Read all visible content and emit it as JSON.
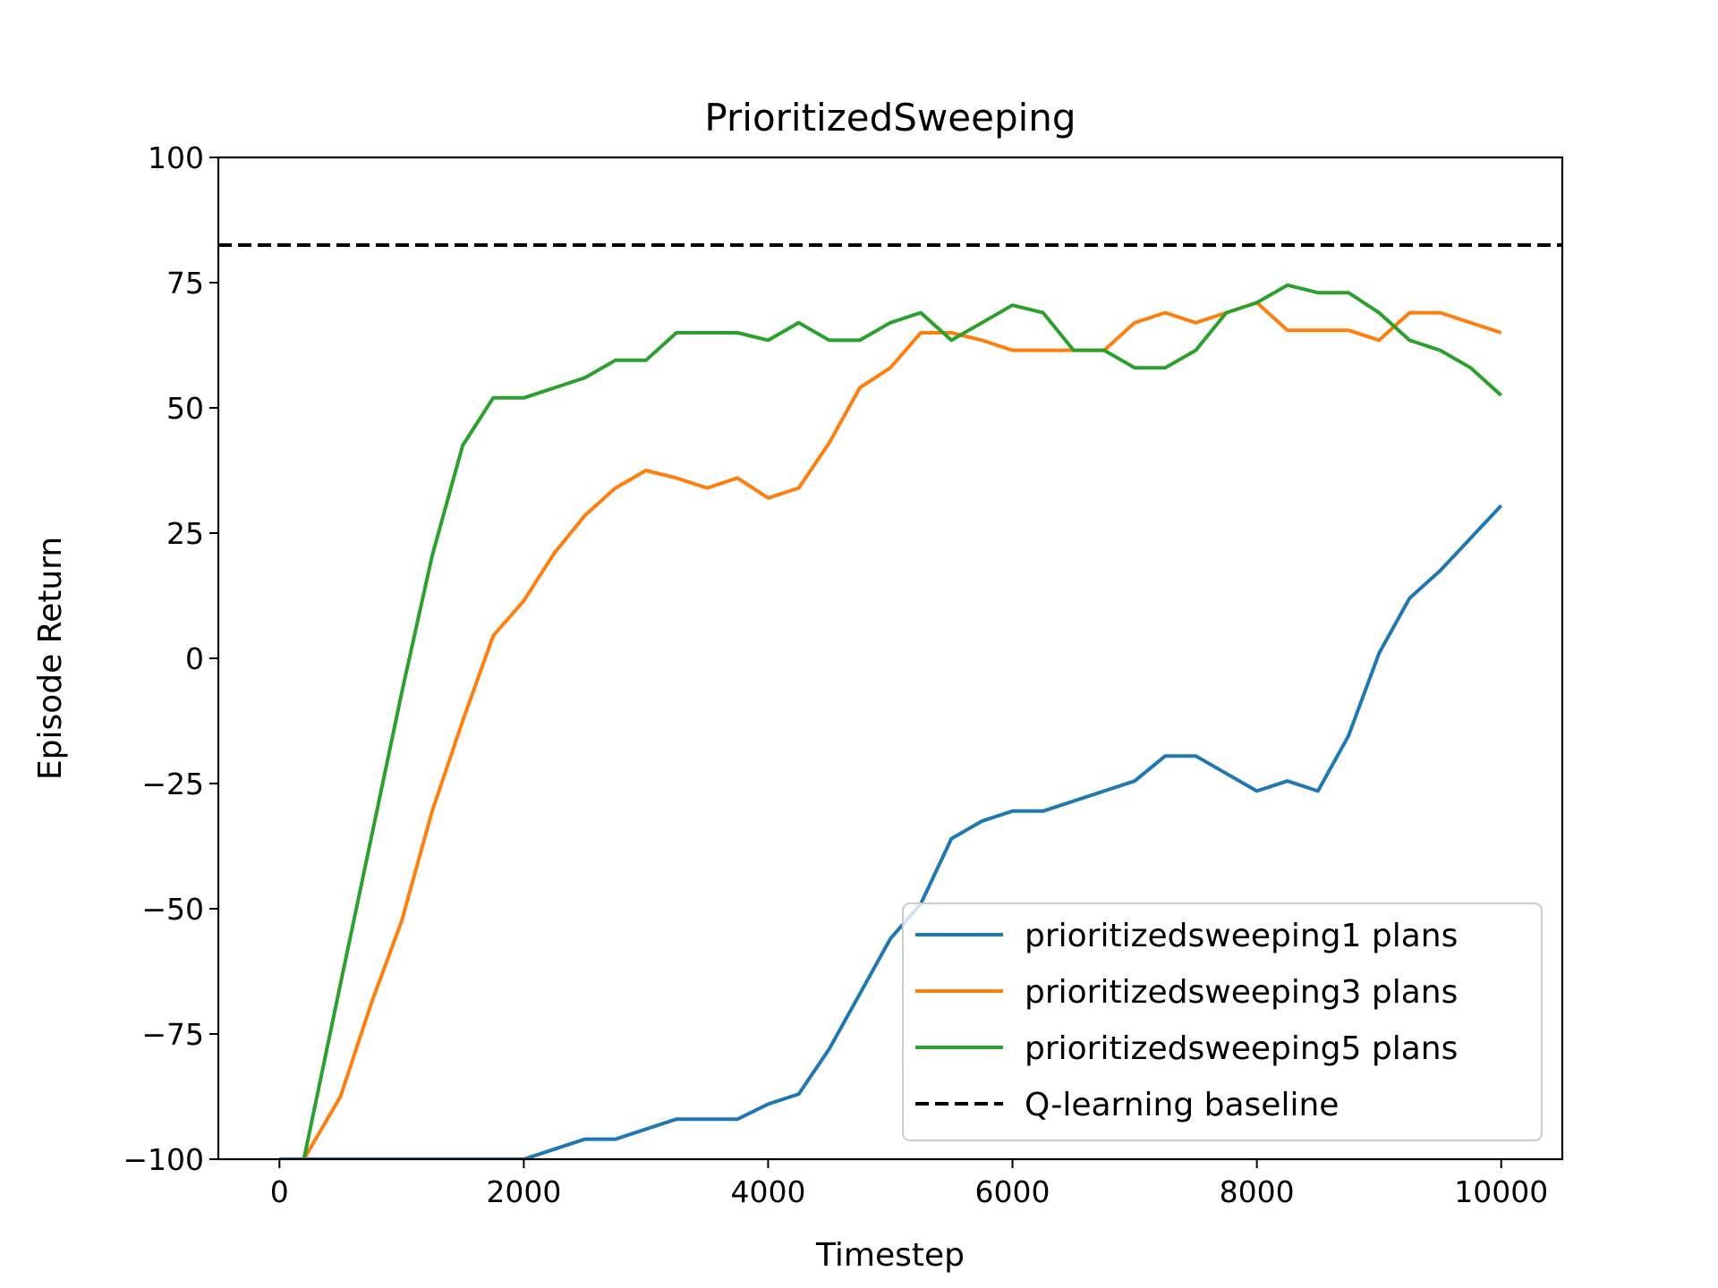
{
  "chart_data": {
    "type": "line",
    "title": "PrioritizedSweeping",
    "xlabel": "Timestep",
    "ylabel": "Episode Return",
    "xlim": [
      -500,
      10500
    ],
    "ylim": [
      -100,
      100
    ],
    "xticks": [
      0,
      2000,
      4000,
      6000,
      8000,
      10000
    ],
    "xtick_labels": [
      "0",
      "2000",
      "4000",
      "6000",
      "8000",
      "10000"
    ],
    "yticks": [
      -100,
      -75,
      -50,
      -25,
      0,
      25,
      50,
      75,
      100
    ],
    "ytick_labels": [
      "−100",
      "−75",
      "−50",
      "−25",
      "0",
      "25",
      "50",
      "75",
      "100"
    ],
    "grid": false,
    "legend_position": "lower-right",
    "x": [
      0,
      200,
      500,
      750,
      1000,
      1250,
      1500,
      1750,
      2000,
      2250,
      2500,
      2750,
      3000,
      3250,
      3500,
      3750,
      4000,
      4250,
      4500,
      4750,
      5000,
      5250,
      5500,
      5750,
      6000,
      6250,
      6500,
      6750,
      7000,
      7250,
      7500,
      7750,
      8000,
      8250,
      8500,
      8750,
      9000,
      9250,
      9500,
      9750,
      10000
    ],
    "series": [
      {
        "name": "prioritizedsweeping1 plans",
        "color": "#1f77b4",
        "style": "solid",
        "x": [
          0,
          250,
          500,
          750,
          1000,
          1250,
          1500,
          1750,
          2000,
          2250,
          2500,
          2750,
          3000,
          3250,
          3500,
          3750,
          4000,
          4250,
          4500,
          4750,
          5000,
          5250,
          5500,
          5750,
          6000,
          6250,
          6500,
          6750,
          7000,
          7250,
          7500,
          7750,
          8000,
          8250,
          8500,
          8750,
          9000,
          9250,
          9500,
          9750,
          10000
        ],
        "values": [
          -100,
          -100,
          -100,
          -100,
          -100,
          -100,
          -100,
          -100,
          -100,
          -98,
          -96,
          -96,
          -94,
          -92,
          -92,
          -92,
          -89,
          -87,
          -78,
          -67,
          -56,
          -49,
          -36,
          -32.5,
          -30.5,
          -30.5,
          -28.5,
          -26.5,
          -24.5,
          -19.5,
          -19.5,
          -23,
          -26.5,
          -24.5,
          -26.5,
          -15.5,
          1,
          12,
          17.5,
          24,
          30.5
        ]
      },
      {
        "name": "prioritizedsweeping3 plans",
        "color": "#ff7f0e",
        "style": "solid",
        "x": [
          200,
          500,
          750,
          1000,
          1250,
          1500,
          1750,
          2000,
          2250,
          2500,
          2750,
          3000,
          3250,
          3500,
          3750,
          4000,
          4250,
          4500,
          4750,
          5000,
          5250,
          5500,
          5750,
          6000,
          6250,
          6500,
          6750,
          7000,
          7250,
          7500,
          7750,
          8000,
          8250,
          8500,
          8750,
          9000,
          9250,
          9500,
          9750,
          10000
        ],
        "values": [
          -100,
          -87.5,
          -69,
          -52.5,
          -30.5,
          -12.5,
          4.5,
          11.5,
          21,
          28.5,
          34,
          37.5,
          36,
          34,
          36,
          32,
          34,
          43,
          54,
          58,
          65,
          65,
          63.5,
          61.5,
          61.5,
          61.5,
          61.5,
          67,
          69,
          67,
          69,
          71,
          65.5,
          65.5,
          65.5,
          63.5,
          69,
          69,
          67,
          65
        ]
      },
      {
        "name": "prioritizedsweeping5 plans",
        "color": "#2ca02c",
        "style": "solid",
        "x": [
          200,
          500,
          750,
          1000,
          1250,
          1500,
          1750,
          2000,
          2250,
          2500,
          2750,
          3000,
          3250,
          3500,
          3750,
          4000,
          4250,
          4500,
          4750,
          5000,
          5250,
          5500,
          5750,
          6000,
          6250,
          6500,
          6750,
          7000,
          7250,
          7500,
          7750,
          8000,
          8250,
          8500,
          8750,
          9000,
          9250,
          9500,
          9750,
          10000
        ],
        "values": [
          -100,
          -65,
          -36,
          -7,
          20.5,
          42.5,
          52,
          52,
          54,
          56,
          59.5,
          59.5,
          65,
          65,
          65,
          63.5,
          67,
          63.5,
          63.5,
          67,
          69,
          63.5,
          67,
          70.5,
          69,
          61.5,
          61.5,
          58,
          58,
          61.5,
          69,
          71,
          74.5,
          73,
          73,
          69,
          63.5,
          61.5,
          58,
          52.5
        ]
      },
      {
        "name": "Q-learning baseline",
        "color": "#000000",
        "style": "dashed",
        "x": [
          -500,
          10500
        ],
        "values": [
          82.5,
          82.5
        ]
      }
    ]
  }
}
